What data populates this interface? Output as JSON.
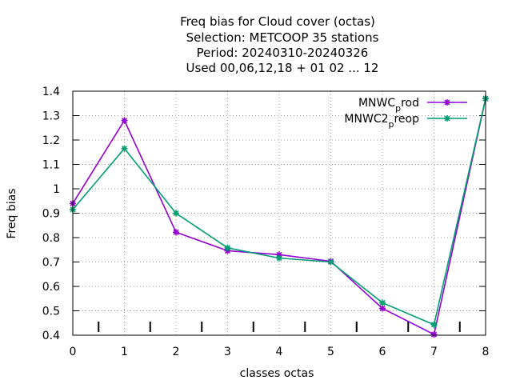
{
  "chart_data": {
    "type": "line",
    "title_lines": [
      "Freq bias  for Cloud cover (octas)",
      "Selection: METCOOP      35 stations",
      "Period: 20240310-20240326",
      "Used  00,06,12,18 + 01 02 ... 12"
    ],
    "xlabel": "classes octas",
    "ylabel": "Freq bias",
    "x": [
      0,
      1,
      2,
      3,
      4,
      5,
      6,
      7,
      8
    ],
    "xlim": [
      0,
      8
    ],
    "ylim": [
      0.4,
      1.4
    ],
    "xticks": [
      "0",
      "1",
      "2",
      "3",
      "4",
      "5",
      "6",
      "7",
      "8"
    ],
    "yticks": [
      "0.4",
      "0.5",
      "0.6",
      "0.7",
      "0.8",
      "0.9",
      "1",
      "1.1",
      "1.2",
      "1.3",
      "1.4"
    ],
    "minor_x_ticks": [
      0.5,
      1.5,
      2.5,
      3.5,
      4.5,
      5.5,
      6.5,
      7.5
    ],
    "grid": true,
    "legend_position": "top-right",
    "series": [
      {
        "name_main": "MNWC",
        "name_sub": "p",
        "name_rest": "rod",
        "color": "#9400d3",
        "values": [
          0.94,
          1.28,
          0.822,
          0.746,
          0.73,
          0.703,
          0.51,
          0.403,
          1.37
        ]
      },
      {
        "name_main": "MNWC2",
        "name_sub": "p",
        "name_rest": "reop",
        "color": "#009e73",
        "values": [
          0.915,
          1.165,
          0.9,
          0.758,
          0.716,
          0.7,
          0.533,
          0.443,
          1.37
        ]
      }
    ]
  }
}
